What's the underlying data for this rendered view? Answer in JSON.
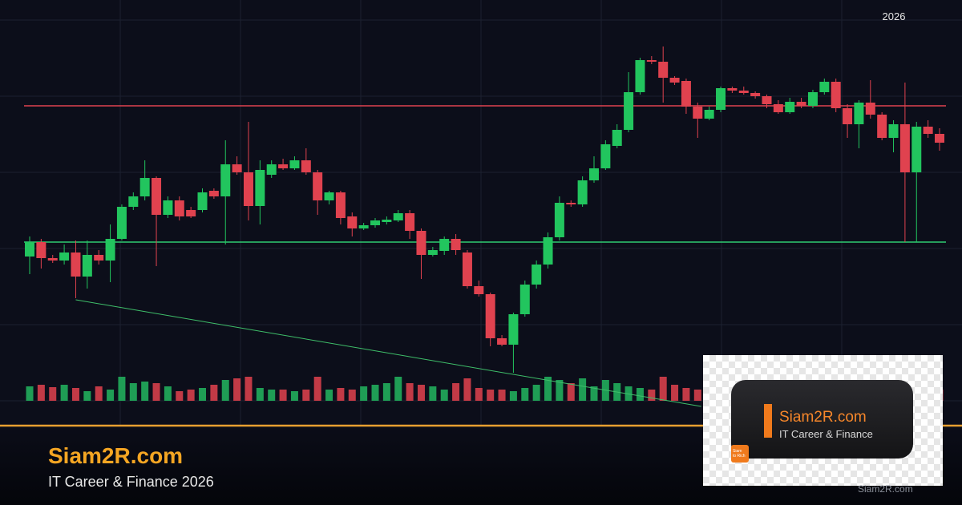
{
  "chart_data": {
    "type": "candlestick",
    "corner_label": "2026",
    "open": [
      180,
      198,
      178,
      175,
      185,
      155,
      182,
      175,
      202,
      242,
      255,
      278,
      232,
      250,
      238,
      238,
      262,
      255,
      295,
      285,
      243,
      282,
      295,
      290,
      300,
      285,
      250,
      260,
      230,
      215,
      219,
      223,
      225,
      234,
      212,
      182,
      187,
      202,
      185,
      143,
      133,
      78,
      70,
      108,
      145,
      170,
      204,
      247,
      245,
      275,
      290,
      318,
      338,
      385,
      425,
      423,
      403,
      399,
      367,
      352,
      363,
      390,
      387,
      384,
      380,
      370,
      360,
      373,
      368,
      385,
      398,
      365,
      345,
      372,
      357,
      328,
      345,
      285,
      342,
      333
    ],
    "high": [
      205,
      202,
      182,
      195,
      200,
      200,
      188,
      220,
      245,
      260,
      300,
      280,
      255,
      255,
      242,
      265,
      265,
      325,
      305,
      348,
      300,
      300,
      302,
      305,
      315,
      288,
      262,
      262,
      235,
      222,
      228,
      230,
      238,
      238,
      215,
      192,
      205,
      208,
      188,
      150,
      135,
      82,
      110,
      150,
      175,
      210,
      255,
      250,
      280,
      305,
      325,
      345,
      410,
      428,
      430,
      442,
      405,
      402,
      372,
      367,
      392,
      392,
      392,
      386,
      382,
      375,
      378,
      378,
      388,
      402,
      402,
      370,
      375,
      400,
      360,
      350,
      397,
      348,
      350,
      340
    ],
    "low": [
      158,
      165,
      172,
      170,
      128,
      140,
      170,
      148,
      200,
      238,
      250,
      168,
      228,
      225,
      228,
      235,
      252,
      195,
      282,
      225,
      220,
      278,
      288,
      288,
      282,
      232,
      245,
      220,
      205,
      213,
      216,
      220,
      223,
      202,
      152,
      180,
      182,
      182,
      140,
      130,
      68,
      68,
      35,
      105,
      140,
      165,
      200,
      242,
      242,
      272,
      288,
      315,
      335,
      382,
      420,
      372,
      394,
      358,
      328,
      350,
      360,
      384,
      382,
      377,
      365,
      358,
      358,
      365,
      365,
      382,
      360,
      328,
      315,
      352,
      325,
      310,
      198,
      198,
      328,
      312
    ],
    "close": [
      198,
      178,
      175,
      185,
      155,
      182,
      175,
      202,
      242,
      255,
      278,
      232,
      250,
      230,
      230,
      260,
      255,
      295,
      285,
      243,
      288,
      295,
      290,
      300,
      285,
      250,
      260,
      228,
      215,
      219,
      225,
      226,
      234,
      212,
      182,
      188,
      202,
      188,
      143,
      133,
      78,
      70,
      108,
      145,
      170,
      204,
      247,
      245,
      275,
      290,
      320,
      338,
      385,
      425,
      423,
      403,
      397,
      367,
      352,
      363,
      390,
      387,
      384,
      380,
      370,
      360,
      373,
      368,
      385,
      398,
      365,
      345,
      372,
      357,
      328,
      345,
      285,
      342,
      333,
      322
    ],
    "volume": [
      18,
      20,
      17,
      20,
      16,
      12,
      18,
      14,
      30,
      22,
      24,
      22,
      18,
      12,
      14,
      16,
      20,
      26,
      28,
      30,
      16,
      14,
      14,
      12,
      14,
      30,
      14,
      16,
      14,
      18,
      20,
      22,
      30,
      22,
      20,
      18,
      14,
      22,
      28,
      16,
      14,
      14,
      12,
      16,
      20,
      30,
      26,
      22,
      28,
      18,
      26,
      22,
      18,
      16,
      14,
      30,
      20,
      16,
      14,
      12,
      24,
      14,
      18,
      20,
      22,
      16,
      18,
      20,
      18,
      22,
      24,
      16,
      18,
      20,
      14,
      16,
      26,
      30,
      18,
      14
    ],
    "up_color": "#22c55e",
    "down_color": "#e0424f",
    "volume_up_color": "#1f9d55",
    "volume_down_color": "#c23a46",
    "ylim": [
      -130,
      500
    ],
    "yticks": [
      475,
      380,
      285,
      190,
      95,
      0
    ],
    "volume_ylim": [
      0,
      100
    ],
    "grid": true,
    "levels": [
      {
        "value": 368,
        "color": "#e0424f"
      },
      {
        "value": 198,
        "color": "#2ecc71"
      }
    ],
    "trendline": {
      "x": [
        4,
        58.3
      ],
      "values": [
        126,
        -7
      ],
      "color": "#3fbf6a"
    }
  },
  "footer": {
    "title": "Siam2R.com",
    "subtitle": "IT Career & Finance 2026"
  },
  "logo_card": {
    "title": "Siam2R.com",
    "subtitle": "IT Career & Finance",
    "icon_lines": [
      "Siam",
      "to Rich"
    ]
  },
  "watermark": "Siam2R.com"
}
